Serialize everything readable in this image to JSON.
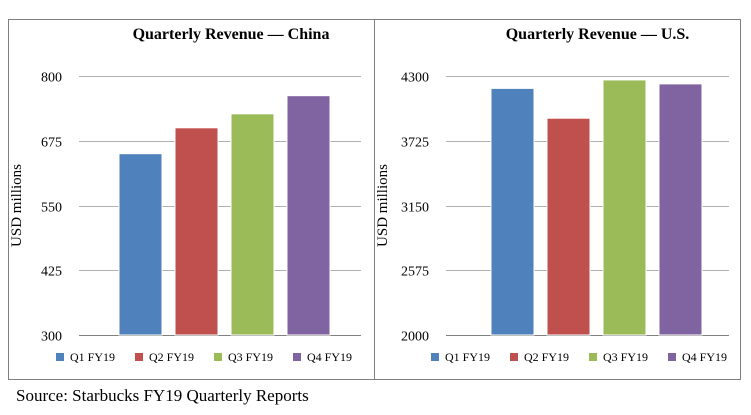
{
  "source_note": "Source: Starbucks FY19 Quarterly Reports",
  "colors": {
    "Q1 FY19": "#4f81bd",
    "Q2 FY19": "#c0504d",
    "Q3 FY19": "#9bbb59",
    "Q4 FY19": "#8064a2"
  },
  "chart_data": [
    {
      "type": "bar",
      "title": "Quarterly Revenue — China",
      "ylabel": "USD millions",
      "xlabel": "",
      "ylim": [
        300,
        800
      ],
      "yticks": [
        "300",
        "425",
        "550",
        "675",
        "800"
      ],
      "grid": true,
      "legend_position": "bottom",
      "categories": [
        "Q1 FY19",
        "Q2 FY19",
        "Q3 FY19",
        "Q4 FY19"
      ],
      "values": [
        650,
        700,
        727,
        762
      ]
    },
    {
      "type": "bar",
      "title": "Quarterly Revenue — U.S.",
      "ylabel": "USD millions",
      "xlabel": "",
      "ylim": [
        2000,
        4300
      ],
      "yticks": [
        "2000",
        "2575",
        "3150",
        "3725",
        "4300"
      ],
      "grid": true,
      "legend_position": "bottom",
      "categories": [
        "Q1 FY19",
        "Q2 FY19",
        "Q3 FY19",
        "Q4 FY19"
      ],
      "values": [
        4190,
        3925,
        4265,
        4230
      ]
    }
  ]
}
